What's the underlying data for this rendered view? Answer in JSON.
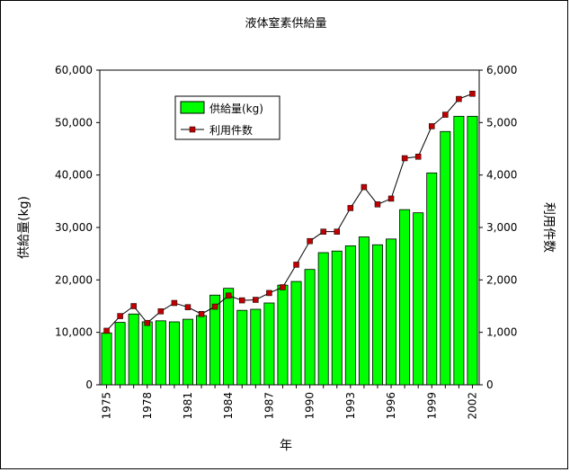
{
  "chart_data": {
    "type": "bar",
    "title": "液体窒素供給量",
    "xlabel": "年",
    "ylabel_left": "供給量(kg)",
    "ylabel_right": "利用件数",
    "categories": [
      1975,
      1976,
      1977,
      1978,
      1979,
      1980,
      1981,
      1982,
      1983,
      1984,
      1985,
      1986,
      1987,
      1988,
      1989,
      1990,
      1991,
      1992,
      1993,
      1994,
      1995,
      1996,
      1997,
      1998,
      1999,
      2000,
      2001,
      2002
    ],
    "x_tick_labels": [
      "1975",
      "1978",
      "1981",
      "1984",
      "1987",
      "1990",
      "1993",
      "1996",
      "1999",
      "2002"
    ],
    "y_left_ticks": [
      "0",
      "10,000",
      "20,000",
      "30,000",
      "40,000",
      "50,000",
      "60,000"
    ],
    "y_right_ticks": [
      "0",
      "1,000",
      "2,000",
      "3,000",
      "4,000",
      "5,000",
      "6,000"
    ],
    "ylim_left": [
      0,
      60000
    ],
    "ylim_right": [
      0,
      6000
    ],
    "series": [
      {
        "name": "供給量(kg)",
        "type": "bar",
        "axis": "left",
        "color": "#00ff00",
        "values": [
          9900,
          11900,
          13500,
          12000,
          12200,
          12000,
          12500,
          13200,
          17100,
          18400,
          14200,
          14400,
          15600,
          19000,
          19700,
          22000,
          25200,
          25500,
          26500,
          28200,
          26700,
          27800,
          33400,
          32800,
          40400,
          48300,
          51200,
          51200
        ]
      },
      {
        "name": "利用件数",
        "type": "line",
        "axis": "right",
        "color": "#c00000",
        "values": [
          1030,
          1310,
          1500,
          1180,
          1400,
          1560,
          1480,
          1350,
          1490,
          1700,
          1610,
          1620,
          1750,
          1860,
          2290,
          2740,
          2920,
          2920,
          3370,
          3770,
          3440,
          3550,
          4320,
          4350,
          4930,
          5150,
          5450,
          5550
        ]
      }
    ],
    "legend_position": "top-left-inside",
    "grid": false
  }
}
